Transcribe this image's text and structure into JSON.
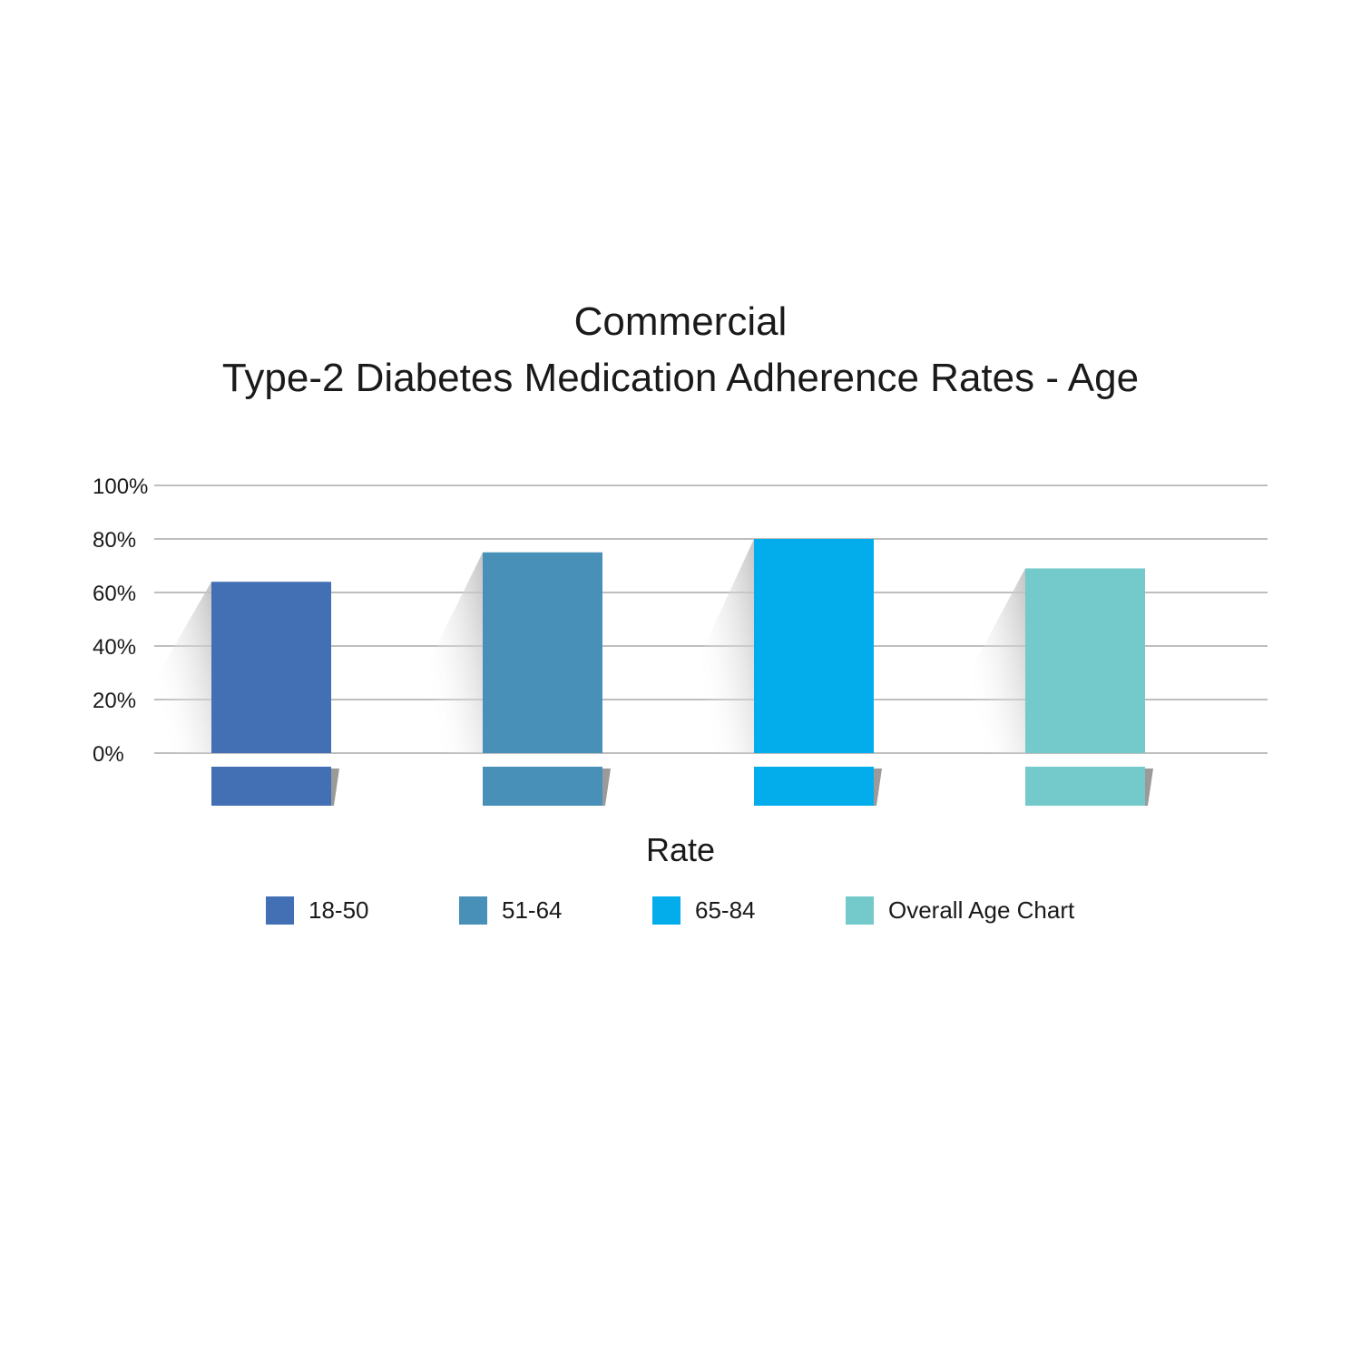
{
  "chart_data": {
    "type": "bar",
    "title": "Commercial",
    "subtitle": "Type-2 Diabetes Medication Adherence Rates - Age",
    "xlabel": "Rate",
    "ylabel": "",
    "ylim": [
      0,
      100
    ],
    "yticks": [
      "0%",
      "20%",
      "40%",
      "60%",
      "80%",
      "100%"
    ],
    "grid": true,
    "legend_position": "bottom",
    "series": [
      {
        "name": "18-50",
        "value": 64,
        "color": "#4370b4"
      },
      {
        "name": "51-64",
        "value": 75,
        "color": "#4890b8"
      },
      {
        "name": "65-84",
        "value": 80,
        "color": "#03adeb"
      },
      {
        "name": "Overall Age Chart",
        "value": 69,
        "color": "#74c9ca"
      }
    ]
  }
}
